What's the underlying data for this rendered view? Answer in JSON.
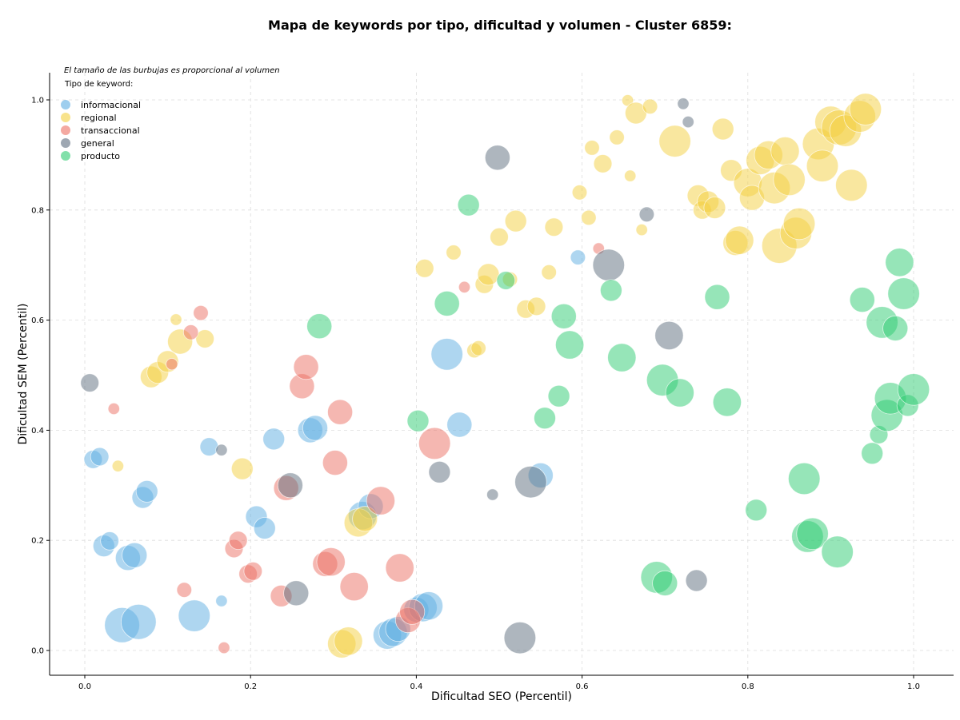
{
  "chart_data": {
    "type": "scatter",
    "title": "Mapa de keywords por tipo, dificultad y volumen - Cluster 6859:",
    "xlabel": "Dificultad SEO (Percentil)",
    "ylabel": "Dificultad SEM (Percentil)",
    "xlim": [
      -0.04,
      1.05
    ],
    "ylim": [
      -0.045,
      1.05
    ],
    "xticks": [
      "0.0",
      "0.2",
      "0.4",
      "0.6",
      "0.8",
      "1.0"
    ],
    "yticks": [
      "0.0",
      "0.2",
      "0.4",
      "0.6",
      "0.8",
      "1.0"
    ],
    "grid": true,
    "legend": {
      "position": "top-left",
      "title": "Tipo de keyword:"
    },
    "annotation": "El tamaño de las burbujas es proporcional al volumen",
    "series": [
      {
        "name": "informacional",
        "color": "#5DADE2",
        "points": [
          [
            0.01,
            0.347,
            4
          ],
          [
            0.018,
            0.352,
            4
          ],
          [
            0.023,
            0.19,
            5
          ],
          [
            0.03,
            0.199,
            4
          ],
          [
            0.052,
            0.168,
            6
          ],
          [
            0.06,
            0.173,
            6
          ],
          [
            0.045,
            0.046,
            9
          ],
          [
            0.065,
            0.052,
            9
          ],
          [
            0.07,
            0.278,
            5
          ],
          [
            0.075,
            0.289,
            5
          ],
          [
            0.132,
            0.063,
            8
          ],
          [
            0.15,
            0.37,
            4
          ],
          [
            0.165,
            0.09,
            2
          ],
          [
            0.207,
            0.243,
            5
          ],
          [
            0.217,
            0.222,
            5
          ],
          [
            0.228,
            0.384,
            5
          ],
          [
            0.272,
            0.4,
            6
          ],
          [
            0.278,
            0.404,
            6
          ],
          [
            0.335,
            0.245,
            7
          ],
          [
            0.345,
            0.262,
            6
          ],
          [
            0.365,
            0.028,
            7
          ],
          [
            0.372,
            0.033,
            7
          ],
          [
            0.378,
            0.039,
            6
          ],
          [
            0.4,
            0.074,
            6
          ],
          [
            0.408,
            0.078,
            7
          ],
          [
            0.415,
            0.081,
            7
          ],
          [
            0.437,
            0.538,
            8
          ],
          [
            0.452,
            0.41,
            6
          ],
          [
            0.55,
            0.318,
            6
          ],
          [
            0.595,
            0.714,
            3
          ]
        ]
      },
      {
        "name": "regional",
        "color": "#F4D03F",
        "points": [
          [
            0.04,
            0.335,
            2
          ],
          [
            0.08,
            0.497,
            5
          ],
          [
            0.088,
            0.505,
            5
          ],
          [
            0.1,
            0.525,
            5
          ],
          [
            0.11,
            0.601,
            2
          ],
          [
            0.115,
            0.561,
            6
          ],
          [
            0.145,
            0.566,
            4
          ],
          [
            0.19,
            0.33,
            5
          ],
          [
            0.31,
            0.012,
            7
          ],
          [
            0.318,
            0.017,
            7
          ],
          [
            0.33,
            0.232,
            7
          ],
          [
            0.338,
            0.239,
            6
          ],
          [
            0.41,
            0.694,
            4
          ],
          [
            0.445,
            0.723,
            3
          ],
          [
            0.47,
            0.545,
            3
          ],
          [
            0.475,
            0.549,
            3
          ],
          [
            0.482,
            0.665,
            4
          ],
          [
            0.487,
            0.683,
            5
          ],
          [
            0.5,
            0.751,
            4
          ],
          [
            0.513,
            0.674,
            3
          ],
          [
            0.52,
            0.78,
            5
          ],
          [
            0.532,
            0.62,
            4
          ],
          [
            0.545,
            0.625,
            4
          ],
          [
            0.56,
            0.687,
            3
          ],
          [
            0.566,
            0.769,
            4
          ],
          [
            0.597,
            0.832,
            3
          ],
          [
            0.608,
            0.786,
            3
          ],
          [
            0.612,
            0.913,
            3
          ],
          [
            0.625,
            0.884,
            4
          ],
          [
            0.642,
            0.932,
            3
          ],
          [
            0.655,
            0.999,
            2
          ],
          [
            0.658,
            0.862,
            2
          ],
          [
            0.665,
            0.976,
            5
          ],
          [
            0.672,
            0.764,
            2
          ],
          [
            0.682,
            0.988,
            3
          ],
          [
            0.712,
            0.925,
            8
          ],
          [
            0.74,
            0.826,
            5
          ],
          [
            0.745,
            0.8,
            4
          ],
          [
            0.752,
            0.815,
            5
          ],
          [
            0.76,
            0.804,
            5
          ],
          [
            0.77,
            0.947,
            5
          ],
          [
            0.78,
            0.872,
            5
          ],
          [
            0.785,
            0.74,
            6
          ],
          [
            0.79,
            0.745,
            7
          ],
          [
            0.8,
            0.85,
            7
          ],
          [
            0.805,
            0.822,
            6
          ],
          [
            0.815,
            0.89,
            7
          ],
          [
            0.825,
            0.9,
            7
          ],
          [
            0.832,
            0.84,
            8
          ],
          [
            0.838,
            0.735,
            9
          ],
          [
            0.845,
            0.907,
            7
          ],
          [
            0.85,
            0.855,
            8
          ],
          [
            0.858,
            0.758,
            8
          ],
          [
            0.862,
            0.775,
            8
          ],
          [
            0.885,
            0.92,
            8
          ],
          [
            0.89,
            0.88,
            8
          ],
          [
            0.9,
            0.96,
            8
          ],
          [
            0.91,
            0.95,
            9
          ],
          [
            0.918,
            0.944,
            8
          ],
          [
            0.925,
            0.845,
            8
          ],
          [
            0.935,
            0.97,
            8
          ],
          [
            0.942,
            0.983,
            8
          ]
        ]
      },
      {
        "name": "transaccional",
        "color": "#EC7063",
        "points": [
          [
            0.035,
            0.439,
            2
          ],
          [
            0.105,
            0.52,
            2
          ],
          [
            0.12,
            0.11,
            3
          ],
          [
            0.128,
            0.578,
            3
          ],
          [
            0.14,
            0.613,
            3
          ],
          [
            0.168,
            0.005,
            2
          ],
          [
            0.18,
            0.185,
            4
          ],
          [
            0.185,
            0.2,
            4
          ],
          [
            0.197,
            0.139,
            4
          ],
          [
            0.203,
            0.144,
            4
          ],
          [
            0.237,
            0.099,
            5
          ],
          [
            0.243,
            0.295,
            6
          ],
          [
            0.262,
            0.48,
            6
          ],
          [
            0.267,
            0.515,
            6
          ],
          [
            0.29,
            0.157,
            6
          ],
          [
            0.297,
            0.161,
            7
          ],
          [
            0.302,
            0.341,
            6
          ],
          [
            0.308,
            0.433,
            6
          ],
          [
            0.325,
            0.116,
            7
          ],
          [
            0.357,
            0.272,
            7
          ],
          [
            0.38,
            0.15,
            7
          ],
          [
            0.39,
            0.055,
            6
          ],
          [
            0.395,
            0.07,
            6
          ],
          [
            0.422,
            0.376,
            8
          ],
          [
            0.458,
            0.66,
            2
          ],
          [
            0.62,
            0.73,
            2
          ]
        ]
      },
      {
        "name": "general",
        "color": "#5D6D7E",
        "points": [
          [
            0.006,
            0.486,
            4
          ],
          [
            0.165,
            0.364,
            2
          ],
          [
            0.248,
            0.3,
            6
          ],
          [
            0.255,
            0.104,
            6
          ],
          [
            0.428,
            0.324,
            5
          ],
          [
            0.492,
            0.283,
            2
          ],
          [
            0.498,
            0.895,
            6
          ],
          [
            0.525,
            0.023,
            8
          ],
          [
            0.538,
            0.306,
            8
          ],
          [
            0.632,
            0.7,
            8
          ],
          [
            0.678,
            0.792,
            3
          ],
          [
            0.705,
            0.572,
            7
          ],
          [
            0.722,
            0.993,
            2
          ],
          [
            0.728,
            0.96,
            2
          ],
          [
            0.738,
            0.127,
            5
          ]
        ]
      },
      {
        "name": "producto",
        "color": "#2ECC71",
        "points": [
          [
            0.283,
            0.589,
            6
          ],
          [
            0.402,
            0.417,
            5
          ],
          [
            0.437,
            0.63,
            6
          ],
          [
            0.463,
            0.809,
            5
          ],
          [
            0.508,
            0.672,
            4
          ],
          [
            0.555,
            0.422,
            5
          ],
          [
            0.572,
            0.462,
            5
          ],
          [
            0.578,
            0.607,
            6
          ],
          [
            0.585,
            0.555,
            7
          ],
          [
            0.635,
            0.654,
            5
          ],
          [
            0.648,
            0.532,
            7
          ],
          [
            0.69,
            0.133,
            8
          ],
          [
            0.697,
            0.491,
            8
          ],
          [
            0.7,
            0.122,
            6
          ],
          [
            0.718,
            0.468,
            7
          ],
          [
            0.763,
            0.642,
            6
          ],
          [
            0.775,
            0.451,
            7
          ],
          [
            0.81,
            0.255,
            5
          ],
          [
            0.868,
            0.312,
            8
          ],
          [
            0.872,
            0.207,
            8
          ],
          [
            0.878,
            0.212,
            8
          ],
          [
            0.908,
            0.179,
            8
          ],
          [
            0.938,
            0.637,
            6
          ],
          [
            0.958,
            0.392,
            4
          ],
          [
            0.95,
            0.358,
            5
          ],
          [
            0.962,
            0.596,
            8
          ],
          [
            0.968,
            0.427,
            8
          ],
          [
            0.972,
            0.458,
            8
          ],
          [
            0.978,
            0.585,
            6
          ],
          [
            0.983,
            0.705,
            7
          ],
          [
            0.988,
            0.648,
            8
          ],
          [
            0.993,
            0.445,
            5
          ],
          [
            1.0,
            0.474,
            8
          ]
        ]
      }
    ]
  }
}
